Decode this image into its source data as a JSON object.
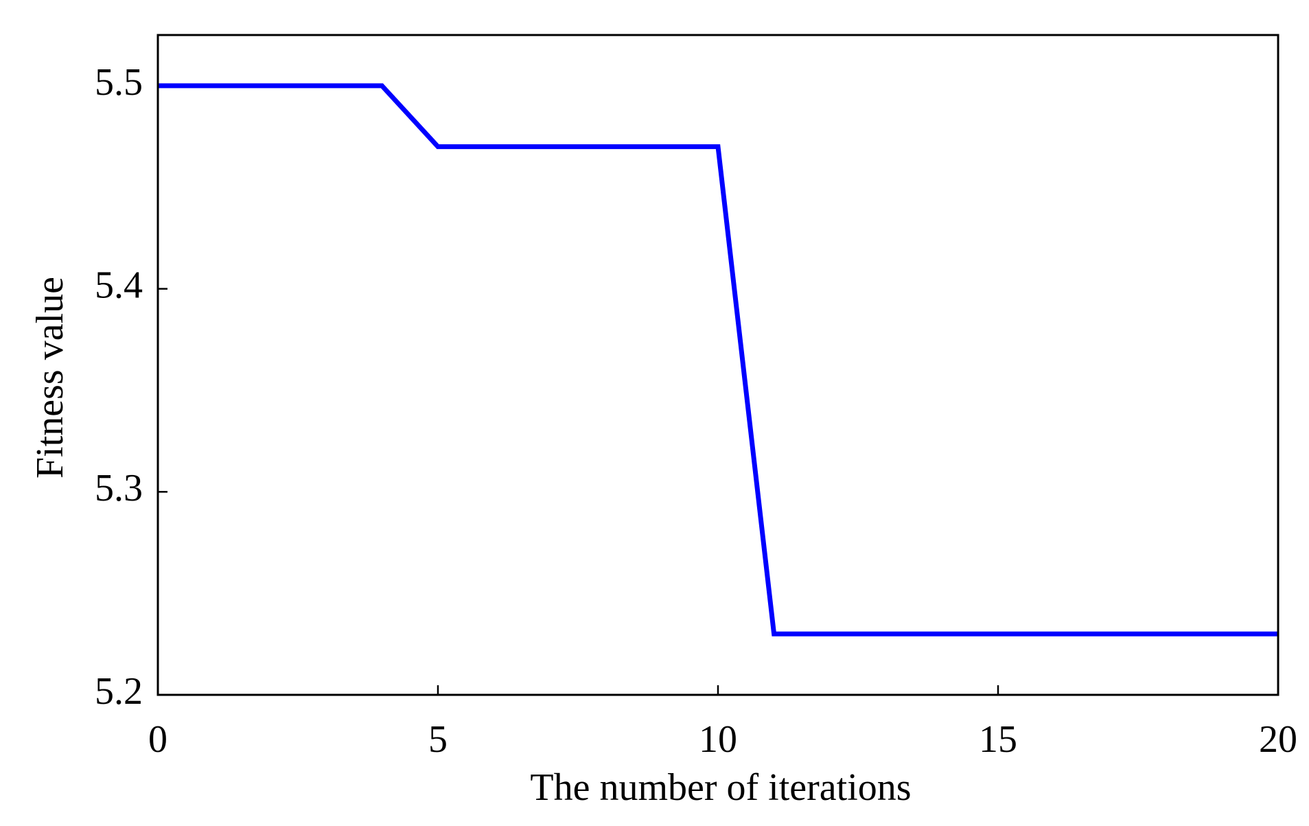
{
  "chart_data": {
    "type": "line",
    "x_label": "The number of iterations",
    "y_label": "Fitness value",
    "x": [
      0,
      1,
      2,
      3,
      4,
      5,
      6,
      7,
      8,
      9,
      10,
      11,
      12,
      13,
      14,
      15,
      16,
      17,
      18,
      19,
      20
    ],
    "series": [
      {
        "color": "#0000ff",
        "values": [
          5.5,
          5.5,
          5.5,
          5.5,
          5.5,
          5.47,
          5.47,
          5.47,
          5.47,
          5.47,
          5.47,
          5.23,
          5.23,
          5.23,
          5.23,
          5.23,
          5.23,
          5.23,
          5.23,
          5.23,
          5.23
        ]
      }
    ],
    "xlim": [
      0,
      20
    ],
    "xticks": [
      0,
      5,
      10,
      15,
      20
    ],
    "ylim": [
      5.2,
      5.525
    ],
    "yticks": [
      5.2,
      5.3,
      5.4,
      5.5
    ]
  }
}
